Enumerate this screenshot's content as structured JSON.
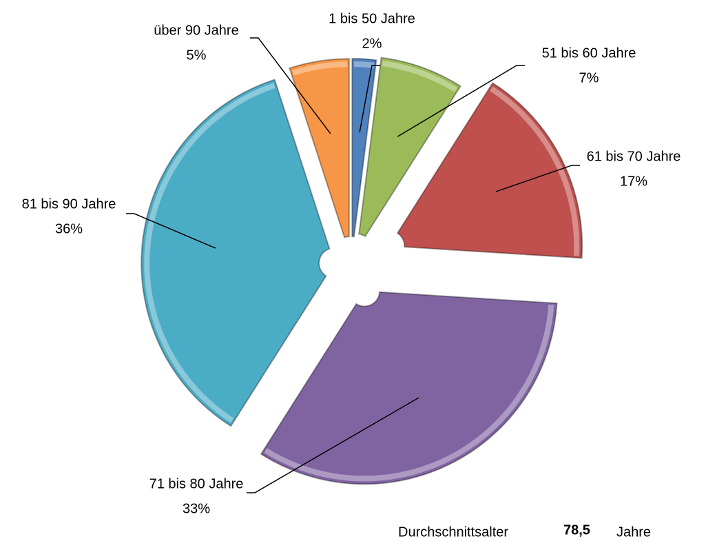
{
  "chart_data": {
    "type": "pie",
    "categories": [
      "1 bis 50 Jahre",
      "51 bis 60 Jahre",
      "61 bis 70 Jahre",
      "71 bis 80 Jahre",
      "81 bis 90 Jahre",
      "über 90 Jahre"
    ],
    "values": [
      2,
      7,
      17,
      33,
      36,
      5
    ],
    "value_labels": [
      "2%",
      "7%",
      "17%",
      "33%",
      "36%",
      "5%"
    ],
    "colors": [
      "#4f81bd",
      "#9bbb59",
      "#c0504d",
      "#8064a2",
      "#4bacc6",
      "#f79646"
    ],
    "note": {
      "label": "Durchschnittsalter",
      "value": "78,5",
      "unit": "Jahre"
    }
  }
}
